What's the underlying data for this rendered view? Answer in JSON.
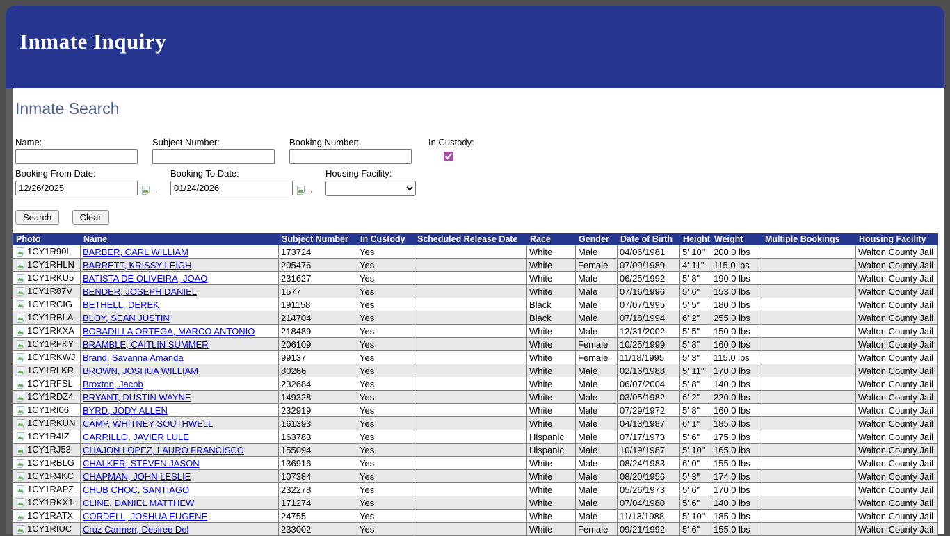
{
  "banner": {
    "title": "Inmate Inquiry"
  },
  "search": {
    "heading": "Inmate Search",
    "fields": {
      "name_label": "Name:",
      "subject_label": "Subject Number:",
      "booking_label": "Booking Number:",
      "custody_label": "In Custody:",
      "custody_checked": true,
      "from_label": "Booking From Date:",
      "from_value": "12/26/2025",
      "to_label": "Booking To Date:",
      "to_value": "01/24/2026",
      "housing_label": "Housing Facility:",
      "picker_alt": "..."
    },
    "buttons": {
      "search": "Search",
      "clear": "Clear"
    }
  },
  "table": {
    "columns": [
      "Photo",
      "Name",
      "Subject Number",
      "In Custody",
      "Scheduled Release Date",
      "Race",
      "Gender",
      "Date of Birth",
      "Height",
      "Weight",
      "Multiple Bookings",
      "Housing Facility"
    ],
    "rows": [
      {
        "photo_alt": "1CY1R90L",
        "name": "BARBER, CARL WILLIAM",
        "subject_number": "173724",
        "in_custody": "Yes",
        "scheduled_release_date": "",
        "race": "White",
        "gender": "Male",
        "dob": "04/06/1981",
        "height": "5' 10\"",
        "weight": "200.0 lbs",
        "multiple_bookings": "",
        "housing_facility": "Walton County Jail"
      },
      {
        "photo_alt": "1CY1RHLN",
        "name": "BARRETT, KRISSY LEIGH",
        "subject_number": "205476",
        "in_custody": "Yes",
        "scheduled_release_date": "",
        "race": "White",
        "gender": "Female",
        "dob": "07/09/1989",
        "height": "4' 11\"",
        "weight": "115.0 lbs",
        "multiple_bookings": "",
        "housing_facility": "Walton County Jail"
      },
      {
        "photo_alt": "1CY1RKU5",
        "name": "BATISTA DE OLIVEIRA, JOAO",
        "subject_number": "231627",
        "in_custody": "Yes",
        "scheduled_release_date": "",
        "race": "White",
        "gender": "Male",
        "dob": "06/25/1992",
        "height": "5' 8\"",
        "weight": "190.0 lbs",
        "multiple_bookings": "",
        "housing_facility": "Walton County Jail"
      },
      {
        "photo_alt": "1CY1R87V",
        "name": "BENDER, JOSEPH DANIEL",
        "subject_number": "1577",
        "in_custody": "Yes",
        "scheduled_release_date": "",
        "race": "White",
        "gender": "Male",
        "dob": "07/16/1996",
        "height": "5' 6\"",
        "weight": "153.0 lbs",
        "multiple_bookings": "",
        "housing_facility": "Walton County Jail"
      },
      {
        "photo_alt": "1CY1RCIG",
        "name": "BETHELL, DEREK",
        "subject_number": "191158",
        "in_custody": "Yes",
        "scheduled_release_date": "",
        "race": "Black",
        "gender": "Male",
        "dob": "07/07/1995",
        "height": "5' 5\"",
        "weight": "180.0 lbs",
        "multiple_bookings": "",
        "housing_facility": "Walton County Jail"
      },
      {
        "photo_alt": "1CY1RBLA",
        "name": "BLOY, SEAN JUSTIN",
        "subject_number": "214704",
        "in_custody": "Yes",
        "scheduled_release_date": "",
        "race": "Black",
        "gender": "Male",
        "dob": "07/18/1994",
        "height": "6' 2\"",
        "weight": "255.0 lbs",
        "multiple_bookings": "",
        "housing_facility": "Walton County Jail"
      },
      {
        "photo_alt": "1CY1RKXA",
        "name": "BOBADILLA ORTEGA, MARCO ANTONIO",
        "subject_number": "218489",
        "in_custody": "Yes",
        "scheduled_release_date": "",
        "race": "White",
        "gender": "Male",
        "dob": "12/31/2002",
        "height": "5' 5\"",
        "weight": "150.0 lbs",
        "multiple_bookings": "",
        "housing_facility": "Walton County Jail"
      },
      {
        "photo_alt": "1CY1RFKY",
        "name": "BRAMBLE, CAITLIN SUMMER",
        "subject_number": "206109",
        "in_custody": "Yes",
        "scheduled_release_date": "",
        "race": "White",
        "gender": "Female",
        "dob": "10/25/1999",
        "height": "5' 8\"",
        "weight": "160.0 lbs",
        "multiple_bookings": "",
        "housing_facility": "Walton County Jail"
      },
      {
        "photo_alt": "1CY1RKWJ",
        "name": "Brand, Savanna Amanda",
        "subject_number": "99137",
        "in_custody": "Yes",
        "scheduled_release_date": "",
        "race": "White",
        "gender": "Female",
        "dob": "11/18/1995",
        "height": "5' 3\"",
        "weight": "115.0 lbs",
        "multiple_bookings": "",
        "housing_facility": "Walton County Jail"
      },
      {
        "photo_alt": "1CY1RLKR",
        "name": "BROWN, JOSHUA WILLIAM",
        "subject_number": "80266",
        "in_custody": "Yes",
        "scheduled_release_date": "",
        "race": "White",
        "gender": "Male",
        "dob": "02/16/1988",
        "height": "5' 11\"",
        "weight": "170.0 lbs",
        "multiple_bookings": "",
        "housing_facility": "Walton County Jail"
      },
      {
        "photo_alt": "1CY1RFSL",
        "name": "Broxton, Jacob",
        "subject_number": "232684",
        "in_custody": "Yes",
        "scheduled_release_date": "",
        "race": "White",
        "gender": "Male",
        "dob": "06/07/2004",
        "height": "5' 8\"",
        "weight": "140.0 lbs",
        "multiple_bookings": "",
        "housing_facility": "Walton County Jail"
      },
      {
        "photo_alt": "1CY1RDZ4",
        "name": "BRYANT, DUSTIN WAYNE",
        "subject_number": "149328",
        "in_custody": "Yes",
        "scheduled_release_date": "",
        "race": "White",
        "gender": "Male",
        "dob": "03/05/1982",
        "height": "6' 2\"",
        "weight": "220.0 lbs",
        "multiple_bookings": "",
        "housing_facility": "Walton County Jail"
      },
      {
        "photo_alt": "1CY1RI06",
        "name": "BYRD, JODY ALLEN",
        "subject_number": "232919",
        "in_custody": "Yes",
        "scheduled_release_date": "",
        "race": "White",
        "gender": "Male",
        "dob": "07/29/1972",
        "height": "5' 8\"",
        "weight": "160.0 lbs",
        "multiple_bookings": "",
        "housing_facility": "Walton County Jail"
      },
      {
        "photo_alt": "1CY1RKUN",
        "name": "CAMP, WHITNEY SOUTHWELL",
        "subject_number": "161393",
        "in_custody": "Yes",
        "scheduled_release_date": "",
        "race": "White",
        "gender": "Male",
        "dob": "04/13/1987",
        "height": "6' 1\"",
        "weight": "185.0 lbs",
        "multiple_bookings": "",
        "housing_facility": "Walton County Jail"
      },
      {
        "photo_alt": "1CY1R4IZ",
        "name": "CARRILLO, JAVIER LULE",
        "subject_number": "163783",
        "in_custody": "Yes",
        "scheduled_release_date": "",
        "race": "Hispanic",
        "gender": "Male",
        "dob": "07/17/1973",
        "height": "5' 6\"",
        "weight": "175.0 lbs",
        "multiple_bookings": "",
        "housing_facility": "Walton County Jail"
      },
      {
        "photo_alt": "1CY1RJ53",
        "name": "CHAJON LOPEZ, LAURO FRANCISCO",
        "subject_number": "155094",
        "in_custody": "Yes",
        "scheduled_release_date": "",
        "race": "Hispanic",
        "gender": "Male",
        "dob": "10/19/1987",
        "height": "5' 10\"",
        "weight": "165.0 lbs",
        "multiple_bookings": "",
        "housing_facility": "Walton County Jail"
      },
      {
        "photo_alt": "1CY1RBLG",
        "name": "CHALKER, STEVEN JASON",
        "subject_number": "136916",
        "in_custody": "Yes",
        "scheduled_release_date": "",
        "race": "White",
        "gender": "Male",
        "dob": "08/24/1983",
        "height": "6' 0\"",
        "weight": "155.0 lbs",
        "multiple_bookings": "",
        "housing_facility": "Walton County Jail"
      },
      {
        "photo_alt": "1CY1R4KC",
        "name": "CHAPMAN, JOHN LESLIE",
        "subject_number": "107384",
        "in_custody": "Yes",
        "scheduled_release_date": "",
        "race": "White",
        "gender": "Male",
        "dob": "08/20/1956",
        "height": "5' 3\"",
        "weight": "174.0 lbs",
        "multiple_bookings": "",
        "housing_facility": "Walton County Jail"
      },
      {
        "photo_alt": "1CY1RAPZ",
        "name": "CHUB CHOC, SANTIAGO",
        "subject_number": "232278",
        "in_custody": "Yes",
        "scheduled_release_date": "",
        "race": "White",
        "gender": "Male",
        "dob": "05/26/1973",
        "height": "5' 6\"",
        "weight": "170.0 lbs",
        "multiple_bookings": "",
        "housing_facility": "Walton County Jail"
      },
      {
        "photo_alt": "1CY1RKX1",
        "name": "CLINE, DANIEL MATTHEW",
        "subject_number": "171274",
        "in_custody": "Yes",
        "scheduled_release_date": "",
        "race": "White",
        "gender": "Male",
        "dob": "07/04/1980",
        "height": "5' 6\"",
        "weight": "140.0 lbs",
        "multiple_bookings": "",
        "housing_facility": "Walton County Jail"
      },
      {
        "photo_alt": "1CY1RATX",
        "name": "CORDELL, JOSHUA EUGENE",
        "subject_number": "24755",
        "in_custody": "Yes",
        "scheduled_release_date": "",
        "race": "White",
        "gender": "Male",
        "dob": "11/13/1988",
        "height": "5' 10\"",
        "weight": "185.0 lbs",
        "multiple_bookings": "",
        "housing_facility": "Walton County Jail"
      },
      {
        "photo_alt": "1CY1RIUC",
        "name": "Cruz Carmen, Desiree Del",
        "subject_number": "233002",
        "in_custody": "Yes",
        "scheduled_release_date": "",
        "race": "White",
        "gender": "Female",
        "dob": "09/21/1992",
        "height": "5' 6\"",
        "weight": "155.0 lbs",
        "multiple_bookings": "",
        "housing_facility": "Walton County Jail"
      }
    ]
  },
  "colors": {
    "banner_blue": "#27368f",
    "accent_checkbox": "#a14ca1",
    "link_blue": "#0000dd",
    "row_alt_gray": "#e8e8e8"
  }
}
